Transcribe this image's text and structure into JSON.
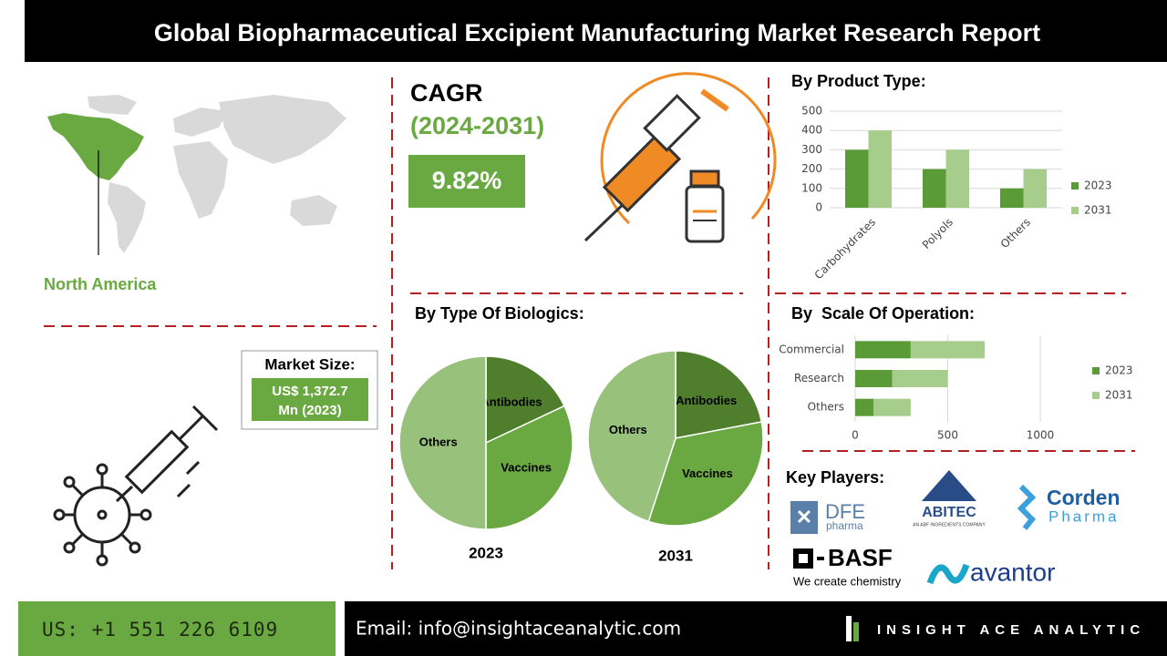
{
  "title": "Global Biopharmaceutical Excipient Manufacturing Market Research Report",
  "region": "North America",
  "cagr": {
    "label": "CAGR",
    "period": "(2024-2031)",
    "value": "9.82%"
  },
  "market_size": {
    "label": "Market Size:",
    "value_lines": [
      "US$ 1,372.7",
      "Mn (2023)"
    ]
  },
  "product_type": {
    "title": "By Product Type:",
    "chart_data": {
      "type": "bar",
      "categories": [
        "Carbohydrates",
        "Polyols",
        "Others"
      ],
      "series": [
        {
          "name": "2023",
          "color": "#5b9b37",
          "values": [
            300,
            200,
            100
          ]
        },
        {
          "name": "2031",
          "color": "#a7cd8d",
          "values": [
            400,
            300,
            200
          ]
        }
      ],
      "ylim": [
        0,
        500
      ],
      "yticks": [
        0,
        100,
        200,
        300,
        400,
        500
      ],
      "grid": true
    }
  },
  "biologics": {
    "title": "By Type Of Biologics:",
    "chart_data": [
      {
        "type": "pie",
        "label": "2023",
        "categories": [
          "Antibodies",
          "Vaccines",
          "Others"
        ],
        "values": [
          18,
          32,
          50
        ],
        "colors": [
          "#4f7f2d",
          "#6aa842",
          "#98c27b"
        ]
      },
      {
        "type": "pie",
        "label": "2031",
        "categories": [
          "Antibodies",
          "Vaccines",
          "Others"
        ],
        "values": [
          22,
          33,
          45
        ],
        "colors": [
          "#4f7f2d",
          "#6aa842",
          "#98c27b"
        ]
      }
    ]
  },
  "scale_of_operation": {
    "title": "By  Scale Of Operation:",
    "chart_data": {
      "type": "hbar",
      "stacked": true,
      "categories": [
        "Commercial",
        "Research",
        "Others"
      ],
      "series": [
        {
          "name": "2023",
          "color": "#5b9b37",
          "values": [
            300,
            200,
            100
          ]
        },
        {
          "name": "2031",
          "color": "#a7cd8d",
          "values": [
            400,
            300,
            200
          ]
        }
      ],
      "xlim": [
        0,
        1000
      ],
      "xticks": [
        0,
        500,
        1000
      ],
      "grid": true
    }
  },
  "key_players": {
    "title": "Key Players:",
    "companies": [
      {
        "name": "DFE",
        "sub": "pharma"
      },
      {
        "name": "ABITEC",
        "sub": "AN ABF INGREDIENTS COMPANY"
      },
      {
        "name": "Corden",
        "sub": "Pharma"
      },
      {
        "name": "BASF",
        "sub": "We create chemistry"
      },
      {
        "name": "avantor"
      }
    ]
  },
  "footer": {
    "phone": "US: +1 551 226 6109",
    "email": "Email: info@insightaceanalytic.com",
    "brand": "INSIGHT ACE ANALYTIC"
  }
}
